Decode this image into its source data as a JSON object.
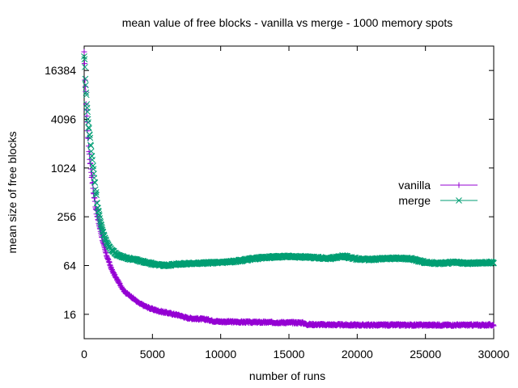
{
  "chart_data": {
    "type": "scatter",
    "title": "mean value of free blocks - vanilla vs merge - 1000 memory spots",
    "xlabel": "number of runs",
    "ylabel": "mean size of free blocks",
    "xlim": [
      0,
      30000
    ],
    "ylim": [
      8,
      32768
    ],
    "y_scale": "log2",
    "grid": false,
    "legend_position": "right",
    "x_ticks": [
      0,
      5000,
      10000,
      15000,
      20000,
      25000,
      30000
    ],
    "x_tick_labels": [
      "0",
      "5000",
      "10000",
      "15000",
      "20000",
      "25000",
      "30000"
    ],
    "y_ticks": [
      16,
      64,
      256,
      1024,
      4096,
      16384
    ],
    "y_tick_labels": [
      "16",
      "64",
      "256",
      "1024",
      "4096",
      "16384"
    ],
    "series": [
      {
        "name": "vanilla",
        "color": "#9400d3",
        "marker": "plus",
        "points": [
          [
            0,
            26000
          ],
          [
            50,
            14000
          ],
          [
            100,
            9000
          ],
          [
            150,
            6000
          ],
          [
            200,
            4200
          ],
          [
            250,
            3000
          ],
          [
            300,
            2200
          ],
          [
            400,
            1400
          ],
          [
            500,
            1000
          ],
          [
            600,
            700
          ],
          [
            700,
            500
          ],
          [
            800,
            380
          ],
          [
            900,
            300
          ],
          [
            1000,
            240
          ],
          [
            1200,
            170
          ],
          [
            1400,
            120
          ],
          [
            1600,
            90
          ],
          [
            1800,
            72
          ],
          [
            2000,
            58
          ],
          [
            2300,
            46
          ],
          [
            2600,
            38
          ],
          [
            3000,
            30
          ],
          [
            3500,
            26
          ],
          [
            4000,
            22
          ],
          [
            4500,
            20
          ],
          [
            5000,
            18.5
          ],
          [
            5500,
            17.5
          ],
          [
            6000,
            16.8
          ],
          [
            7000,
            15.5
          ],
          [
            7500,
            14.5
          ],
          [
            8000,
            14.2
          ],
          [
            9000,
            13.8
          ],
          [
            9500,
            13.2
          ],
          [
            10000,
            13.0
          ],
          [
            12000,
            12.8
          ],
          [
            14000,
            12.7
          ],
          [
            16000,
            12.6
          ],
          [
            16300,
            12.0
          ],
          [
            18000,
            11.9
          ],
          [
            20000,
            11.8
          ],
          [
            22000,
            11.8
          ],
          [
            24000,
            11.8
          ],
          [
            26000,
            11.8
          ],
          [
            28000,
            11.8
          ],
          [
            30000,
            11.8
          ]
        ]
      },
      {
        "name": "merge",
        "color": "#009e73",
        "marker": "cross",
        "points": [
          [
            0,
            26000
          ],
          [
            50,
            18000
          ],
          [
            100,
            12000
          ],
          [
            150,
            8500
          ],
          [
            200,
            6200
          ],
          [
            250,
            4800
          ],
          [
            300,
            3800
          ],
          [
            400,
            2600
          ],
          [
            500,
            1800
          ],
          [
            600,
            1300
          ],
          [
            700,
            900
          ],
          [
            800,
            600
          ],
          [
            900,
            450
          ],
          [
            1000,
            330
          ],
          [
            1200,
            220
          ],
          [
            1400,
            160
          ],
          [
            1600,
            130
          ],
          [
            1800,
            110
          ],
          [
            2000,
            100
          ],
          [
            2300,
            90
          ],
          [
            2600,
            84
          ],
          [
            3000,
            80
          ],
          [
            3500,
            77
          ],
          [
            4000,
            74
          ],
          [
            4500,
            70
          ],
          [
            5000,
            67
          ],
          [
            5500,
            65
          ],
          [
            6000,
            64
          ],
          [
            6500,
            66
          ],
          [
            7000,
            67
          ],
          [
            8000,
            68
          ],
          [
            9000,
            69
          ],
          [
            10000,
            70
          ],
          [
            11000,
            72
          ],
          [
            12000,
            76
          ],
          [
            13000,
            80
          ],
          [
            14000,
            82
          ],
          [
            15000,
            83
          ],
          [
            16000,
            82
          ],
          [
            17000,
            80
          ],
          [
            18000,
            78
          ],
          [
            19000,
            84
          ],
          [
            19500,
            80
          ],
          [
            20000,
            77
          ],
          [
            21000,
            76
          ],
          [
            22000,
            78
          ],
          [
            23000,
            79
          ],
          [
            24000,
            77
          ],
          [
            25000,
            70
          ],
          [
            26000,
            68
          ],
          [
            27000,
            70
          ],
          [
            28000,
            68
          ],
          [
            29000,
            69
          ],
          [
            30000,
            70
          ]
        ]
      }
    ]
  }
}
